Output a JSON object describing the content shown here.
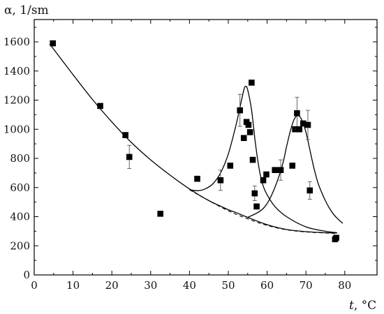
{
  "chart_data": {
    "type": "scatter",
    "ylabel": "α, 1/sm",
    "xlabel_var": "t",
    "xlabel_unit": ", °C",
    "xlim": [
      0,
      80
    ],
    "ylim": [
      0,
      1700
    ],
    "x_ticks": [
      "0",
      "10",
      "20",
      "30",
      "40",
      "50",
      "60",
      "70",
      "80"
    ],
    "y_ticks": [
      "0",
      "200",
      "400",
      "600",
      "800",
      "1000",
      "1200",
      "1400",
      "1600"
    ],
    "grid": false,
    "legend": "none",
    "series": [
      {
        "kind": "markers",
        "marker": "square",
        "points": [
          {
            "x": 4.8,
            "y": 1590
          },
          {
            "x": 17.0,
            "y": 1160
          },
          {
            "x": 23.5,
            "y": 960
          },
          {
            "x": 24.5,
            "y": 810,
            "err": 80
          },
          {
            "x": 32.5,
            "y": 420
          },
          {
            "x": 42.0,
            "y": 660
          },
          {
            "x": 48.0,
            "y": 650,
            "err": 70
          },
          {
            "x": 50.5,
            "y": 750
          },
          {
            "x": 53.0,
            "y": 1130,
            "err": 110
          },
          {
            "x": 54.0,
            "y": 940
          },
          {
            "x": 54.7,
            "y": 1050
          },
          {
            "x": 55.2,
            "y": 1030
          },
          {
            "x": 55.6,
            "y": 980
          },
          {
            "x": 56.0,
            "y": 1320
          },
          {
            "x": 56.3,
            "y": 790
          },
          {
            "x": 56.8,
            "y": 560,
            "err": 50
          },
          {
            "x": 57.3,
            "y": 470
          },
          {
            "x": 59.0,
            "y": 650
          },
          {
            "x": 59.8,
            "y": 690
          },
          {
            "x": 62.0,
            "y": 720
          },
          {
            "x": 63.5,
            "y": 720,
            "err": 70
          },
          {
            "x": 66.5,
            "y": 750
          },
          {
            "x": 67.2,
            "y": 1000
          },
          {
            "x": 67.7,
            "y": 1110,
            "err": 110
          },
          {
            "x": 68.3,
            "y": 1000
          },
          {
            "x": 69.3,
            "y": 1040
          },
          {
            "x": 70.5,
            "y": 1030,
            "err": 100
          },
          {
            "x": 71.0,
            "y": 580,
            "err": 60
          },
          {
            "x": 77.5,
            "y": 245
          },
          {
            "x": 77.8,
            "y": 255
          }
        ]
      },
      {
        "kind": "baseline-dashed",
        "points": [
          [
            40,
            585
          ],
          [
            45,
            510
          ],
          [
            50,
            440
          ],
          [
            55,
            385
          ],
          [
            60,
            340
          ],
          [
            65,
            310
          ],
          [
            70,
            295
          ],
          [
            75,
            288
          ],
          [
            78,
            285
          ]
        ]
      },
      {
        "kind": "fit-line",
        "points": [
          [
            4,
            1585
          ],
          [
            10,
            1375
          ],
          [
            15,
            1205
          ],
          [
            20,
            1050
          ],
          [
            25,
            910
          ],
          [
            30,
            790
          ],
          [
            35,
            685
          ],
          [
            40,
            590
          ],
          [
            45,
            510
          ],
          [
            50,
            448
          ],
          [
            52,
            428
          ],
          [
            55,
            395
          ],
          [
            60,
            345
          ],
          [
            65,
            312
          ],
          [
            70,
            297
          ],
          [
            75,
            290
          ],
          [
            78,
            288
          ]
        ]
      },
      {
        "kind": "fit-line",
        "points": [
          [
            40,
            585
          ],
          [
            42,
            578
          ],
          [
            44,
            590
          ],
          [
            46,
            625
          ],
          [
            48,
            700
          ],
          [
            50,
            830
          ],
          [
            52,
            1030
          ],
          [
            53,
            1150
          ],
          [
            54,
            1270
          ],
          [
            54.5,
            1295
          ],
          [
            55,
            1270
          ],
          [
            56,
            1130
          ],
          [
            57,
            900
          ],
          [
            58,
            720
          ],
          [
            59,
            610
          ],
          [
            60,
            550
          ],
          [
            62,
            470
          ],
          [
            65,
            400
          ],
          [
            70,
            330
          ],
          [
            75,
            300
          ],
          [
            78,
            290
          ]
        ]
      },
      {
        "kind": "fit-line",
        "points": [
          [
            55,
            395
          ],
          [
            58,
            435
          ],
          [
            60,
            490
          ],
          [
            62,
            600
          ],
          [
            64,
            760
          ],
          [
            65,
            880
          ],
          [
            66,
            990
          ],
          [
            67,
            1070
          ],
          [
            68,
            1095
          ],
          [
            69,
            1060
          ],
          [
            70,
            980
          ],
          [
            71,
            860
          ],
          [
            72,
            740
          ],
          [
            73,
            640
          ],
          [
            74,
            570
          ],
          [
            75,
            510
          ],
          [
            76,
            460
          ],
          [
            77,
            420
          ],
          [
            78,
            390
          ],
          [
            79,
            365
          ],
          [
            79.5,
            355
          ]
        ]
      }
    ]
  }
}
